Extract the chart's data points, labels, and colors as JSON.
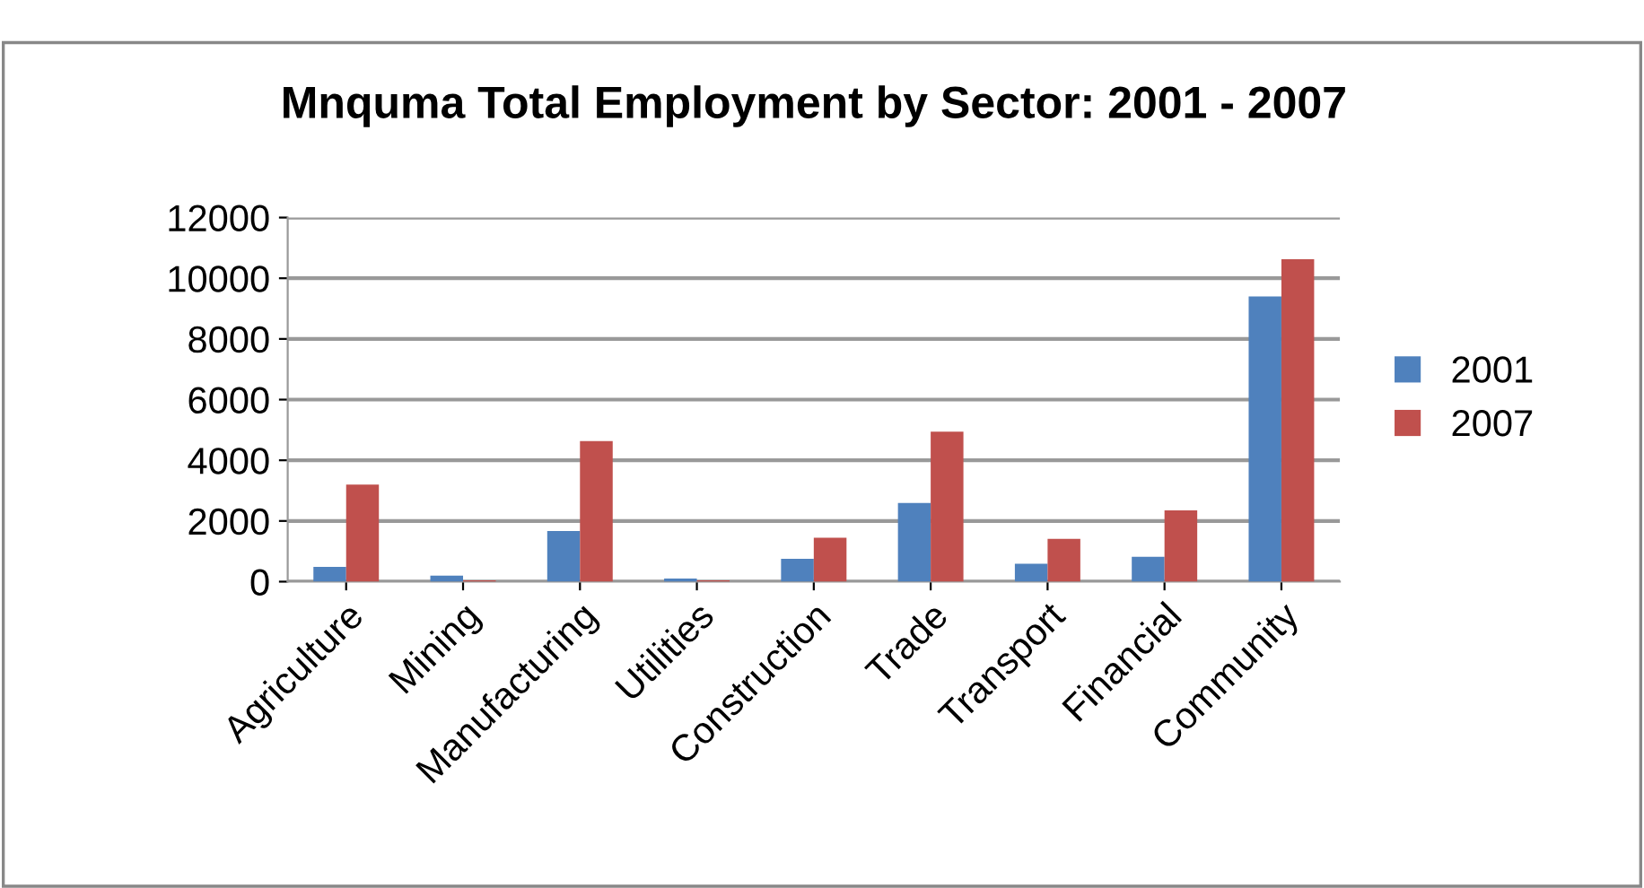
{
  "chart_data": {
    "type": "bar",
    "title": "Mnquma Total Employment by Sector: 2001 - 2007",
    "categories": [
      "Agriculture",
      "Mining",
      "Manufacturing",
      "Utilities",
      "Construction",
      "Trade",
      "Transport",
      "Financial",
      "Community"
    ],
    "series": [
      {
        "name": "2001",
        "color": "#4f81bd",
        "values": [
          490,
          200,
          1670,
          100,
          750,
          2590,
          590,
          820,
          9400
        ]
      },
      {
        "name": "2007",
        "color": "#c0504d",
        "values": [
          3200,
          40,
          4630,
          40,
          1450,
          4940,
          1410,
          2350,
          10630
        ]
      }
    ],
    "ylim": [
      0,
      12000
    ],
    "yticks": [
      0,
      2000,
      4000,
      6000,
      8000,
      10000,
      12000
    ],
    "grid": "y",
    "legend": "right"
  }
}
